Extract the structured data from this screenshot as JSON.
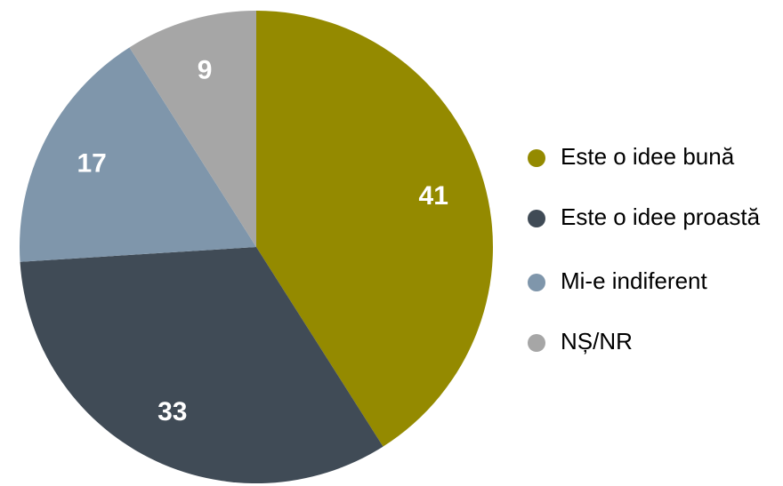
{
  "chart_data": {
    "type": "pie",
    "categories": [
      "Este o idee bună",
      "Este o idee proastă",
      "Mi-e indiferent",
      "NȘ/NR"
    ],
    "values": [
      41,
      33,
      17,
      9
    ],
    "colors": [
      "#948a00",
      "#404b56",
      "#7f96ab",
      "#a6a6a6"
    ],
    "legend": "right"
  }
}
